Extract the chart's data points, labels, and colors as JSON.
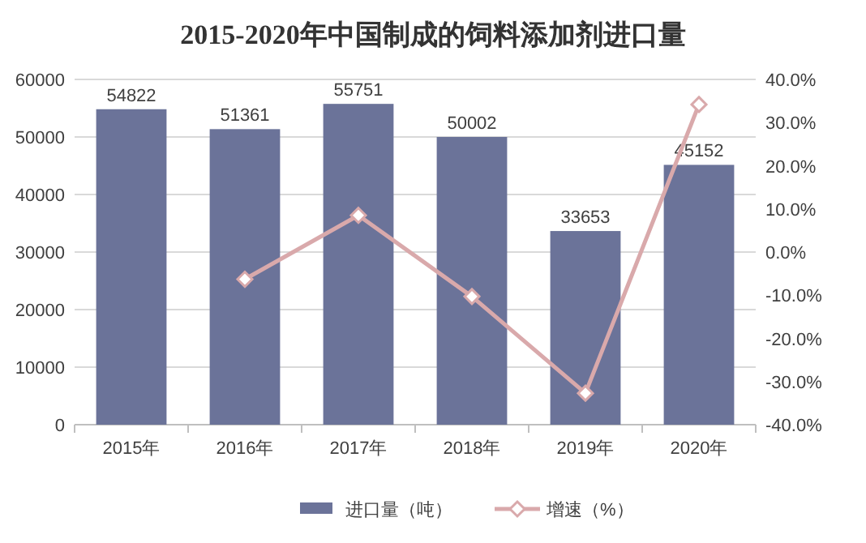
{
  "chart_data": {
    "type": "bar",
    "title": "2015-2020年中国制成的饲料添加剂进口量",
    "categories": [
      "2015年",
      "2016年",
      "2017年",
      "2018年",
      "2019年",
      "2020年"
    ],
    "series": [
      {
        "name": "进口量（吨）",
        "color": "#6b7399",
        "values": [
          54822,
          51361,
          55751,
          50002,
          33653,
          45152
        ],
        "value_labels": [
          "54822",
          "51361",
          "55751",
          "50002",
          "33653",
          "45152"
        ]
      },
      {
        "name": "增速（%）",
        "type": "line",
        "axis": "y2",
        "color": "#d9a9ab",
        "marker": "diamond",
        "values": [
          null,
          -6.3,
          8.5,
          -10.3,
          -32.7,
          34.2
        ]
      }
    ],
    "ylim": [
      0,
      60000
    ],
    "yticks": [
      0,
      10000,
      20000,
      30000,
      40000,
      50000,
      60000
    ],
    "y2lim": [
      -40,
      40
    ],
    "y2ticks": [
      {
        "value": -40,
        "label": "-40.0%"
      },
      {
        "value": -30,
        "label": "-30.0%"
      },
      {
        "value": -20,
        "label": "-20.0%"
      },
      {
        "value": -10,
        "label": "-10.0%"
      },
      {
        "value": 0,
        "label": "0.0%"
      },
      {
        "value": 10,
        "label": "10.0%"
      },
      {
        "value": 20,
        "label": "20.0%"
      },
      {
        "value": 30,
        "label": "30.0%"
      },
      {
        "value": 40,
        "label": "40.0%"
      }
    ],
    "grid": "y",
    "legend": "bottom"
  }
}
